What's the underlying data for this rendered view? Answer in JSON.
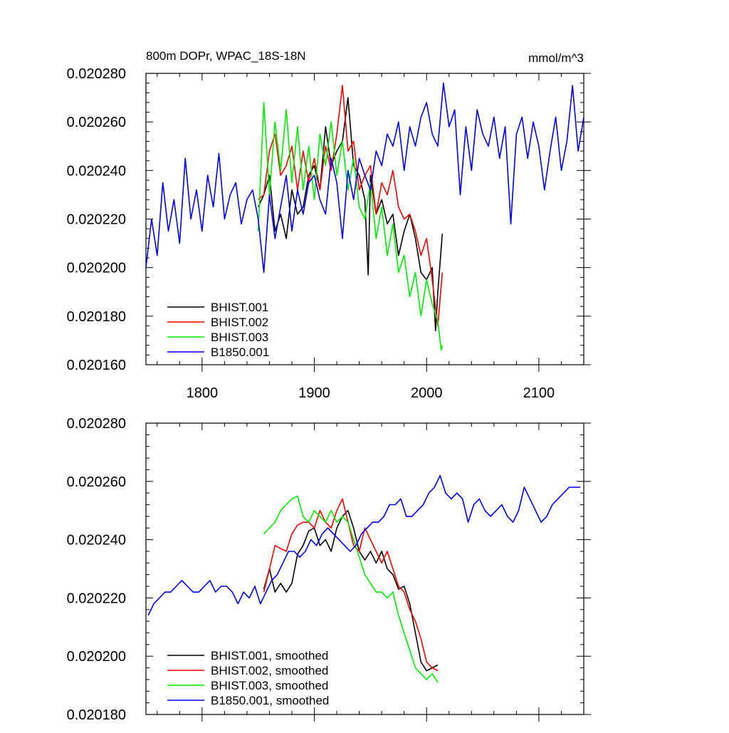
{
  "figure": {
    "title": "800m DOPr, WPAC_18S-18N",
    "units": "mmol/m^3"
  },
  "colors": {
    "BHIST.001": "#000000",
    "BHIST.002": "#ff0000",
    "BHIST.003": "#00ee00",
    "B1850.001": "#0000ff"
  },
  "chart_data": [
    {
      "type": "line",
      "panel": "top",
      "title": "800m DOPr, WPAC_18S-18N",
      "units_label": "mmol/m^3",
      "xlabel": "",
      "ylabel": "",
      "xlim": [
        1750,
        2140
      ],
      "ylim": [
        0.02016,
        0.02028
      ],
      "x_ticks": [
        1800,
        1900,
        2000,
        2100
      ],
      "x_tick_labels": [
        "1800",
        "1900",
        "2000",
        "2100"
      ],
      "y_ticks": [
        0.02016,
        0.02018,
        0.0202,
        0.02022,
        0.02024,
        0.02026,
        0.02028
      ],
      "y_tick_labels": [
        "0.020160",
        "0.020180",
        "0.020200",
        "0.020220",
        "0.020240",
        "0.020260",
        "0.020280"
      ],
      "legend_position": "bottom-left",
      "series": [
        {
          "name": "BHIST.001",
          "x": [
            1850,
            1855,
            1860,
            1865,
            1870,
            1875,
            1880,
            1885,
            1890,
            1895,
            1900,
            1905,
            1910,
            1915,
            1920,
            1925,
            1930,
            1935,
            1940,
            1945,
            1948,
            1950,
            1955,
            1960,
            1965,
            1970,
            1975,
            1980,
            1985,
            1990,
            1995,
            2000,
            2005,
            2008,
            2010,
            2014
          ],
          "values": [
            0.020225,
            0.02023,
            0.020238,
            0.020215,
            0.020222,
            0.020212,
            0.020232,
            0.020222,
            0.020225,
            0.020238,
            0.020242,
            0.020232,
            0.020258,
            0.020242,
            0.020248,
            0.020252,
            0.02027,
            0.020242,
            0.020238,
            0.020228,
            0.020197,
            0.020238,
            0.020222,
            0.020228,
            0.020218,
            0.020222,
            0.020205,
            0.020215,
            0.020222,
            0.020212,
            0.020198,
            0.020195,
            0.0202,
            0.020174,
            0.02019,
            0.020214
          ]
        },
        {
          "name": "BHIST.002",
          "x": [
            1850,
            1855,
            1860,
            1865,
            1870,
            1875,
            1880,
            1885,
            1890,
            1895,
            1900,
            1905,
            1910,
            1915,
            1920,
            1925,
            1930,
            1935,
            1940,
            1945,
            1950,
            1955,
            1960,
            1965,
            1970,
            1975,
            1980,
            1985,
            1990,
            1995,
            2000,
            2005,
            2010,
            2014
          ],
          "values": [
            0.020228,
            0.02023,
            0.020248,
            0.020255,
            0.020238,
            0.020242,
            0.02025,
            0.020232,
            0.020248,
            0.020235,
            0.020245,
            0.020232,
            0.02025,
            0.02024,
            0.020255,
            0.020275,
            0.020248,
            0.020252,
            0.020232,
            0.020238,
            0.020242,
            0.020222,
            0.020235,
            0.02023,
            0.02024,
            0.020225,
            0.02022,
            0.020222,
            0.020215,
            0.020205,
            0.020212,
            0.020195,
            0.020176,
            0.020198
          ]
        },
        {
          "name": "BHIST.003",
          "x": [
            1850,
            1855,
            1860,
            1865,
            1870,
            1875,
            1880,
            1885,
            1890,
            1895,
            1900,
            1905,
            1910,
            1915,
            1920,
            1925,
            1930,
            1935,
            1940,
            1945,
            1950,
            1955,
            1960,
            1965,
            1970,
            1975,
            1980,
            1985,
            1990,
            1995,
            2000,
            2005,
            2010,
            2013,
            2014
          ],
          "values": [
            0.020215,
            0.020268,
            0.02023,
            0.02026,
            0.02024,
            0.020265,
            0.020235,
            0.020258,
            0.020232,
            0.02025,
            0.020228,
            0.020255,
            0.020242,
            0.02026,
            0.020238,
            0.020252,
            0.020232,
            0.020245,
            0.020225,
            0.02022,
            0.020235,
            0.020212,
            0.020225,
            0.020205,
            0.020218,
            0.020198,
            0.020205,
            0.020188,
            0.020198,
            0.02018,
            0.020195,
            0.020185,
            0.020178,
            0.020166,
            0.020168
          ]
        },
        {
          "name": "B1850.001",
          "x": [
            1750,
            1755,
            1760,
            1765,
            1770,
            1775,
            1780,
            1785,
            1790,
            1795,
            1800,
            1805,
            1810,
            1815,
            1820,
            1825,
            1830,
            1835,
            1840,
            1845,
            1850,
            1855,
            1860,
            1865,
            1870,
            1875,
            1880,
            1885,
            1890,
            1895,
            1900,
            1905,
            1910,
            1915,
            1920,
            1925,
            1930,
            1935,
            1940,
            1945,
            1950,
            1955,
            1960,
            1965,
            1970,
            1975,
            1980,
            1985,
            1990,
            1995,
            2000,
            2005,
            2010,
            2015,
            2020,
            2025,
            2030,
            2035,
            2040,
            2045,
            2050,
            2055,
            2060,
            2065,
            2070,
            2075,
            2080,
            2085,
            2090,
            2095,
            2100,
            2105,
            2110,
            2115,
            2120,
            2125,
            2130,
            2135,
            2140
          ],
          "values": [
            0.0202,
            0.02022,
            0.020205,
            0.020235,
            0.020215,
            0.020228,
            0.02021,
            0.020245,
            0.02022,
            0.020232,
            0.020215,
            0.020238,
            0.020225,
            0.020247,
            0.02022,
            0.02023,
            0.020235,
            0.020218,
            0.020228,
            0.020232,
            0.02022,
            0.020198,
            0.02023,
            0.020212,
            0.020225,
            0.020238,
            0.020215,
            0.020232,
            0.020222,
            0.020235,
            0.020238,
            0.020228,
            0.020222,
            0.020245,
            0.020235,
            0.020212,
            0.02024,
            0.020228,
            0.020245,
            0.020238,
            0.020232,
            0.020248,
            0.020242,
            0.020255,
            0.02025,
            0.02026,
            0.02024,
            0.020258,
            0.02025,
            0.020262,
            0.020268,
            0.020255,
            0.02025,
            0.020276,
            0.020258,
            0.020265,
            0.02023,
            0.020258,
            0.02024,
            0.020265,
            0.020255,
            0.02025,
            0.020262,
            0.020245,
            0.020258,
            0.020218,
            0.020255,
            0.020262,
            0.020245,
            0.02026,
            0.02025,
            0.020232,
            0.020248,
            0.020262,
            0.02024,
            0.020252,
            0.020275,
            0.020248,
            0.020262
          ]
        }
      ]
    },
    {
      "type": "line",
      "panel": "bottom",
      "title": "",
      "xlabel": "",
      "ylabel": "",
      "xlim": [
        1750,
        2140
      ],
      "ylim": [
        0.02018,
        0.02028
      ],
      "x_ticks": [
        1800,
        1900,
        2000,
        2100
      ],
      "y_ticks": [
        0.02018,
        0.0202,
        0.02022,
        0.02024,
        0.02026,
        0.02028
      ],
      "y_tick_labels": [
        "0.020180",
        "0.020200",
        "0.020220",
        "0.020240",
        "0.020260",
        "0.020280"
      ],
      "legend_position": "bottom-left",
      "series": [
        {
          "name": "BHIST.001, smoothed",
          "x": [
            1855,
            1860,
            1865,
            1870,
            1875,
            1880,
            1885,
            1890,
            1895,
            1900,
            1905,
            1910,
            1915,
            1920,
            1925,
            1930,
            1935,
            1940,
            1945,
            1950,
            1955,
            1960,
            1965,
            1970,
            1975,
            1980,
            1985,
            1990,
            1995,
            2000,
            2005,
            2010
          ],
          "values": [
            0.020223,
            0.02023,
            0.020222,
            0.020225,
            0.020222,
            0.020225,
            0.020235,
            0.020238,
            0.020243,
            0.020244,
            0.020238,
            0.02024,
            0.020236,
            0.020244,
            0.020248,
            0.02025,
            0.020244,
            0.020236,
            0.020233,
            0.020236,
            0.020232,
            0.020236,
            0.02023,
            0.020228,
            0.020223,
            0.020224,
            0.020218,
            0.020208,
            0.020198,
            0.020195,
            0.020196,
            0.020197
          ]
        },
        {
          "name": "BHIST.002, smoothed",
          "x": [
            1855,
            1860,
            1865,
            1870,
            1875,
            1880,
            1885,
            1890,
            1895,
            1900,
            1905,
            1910,
            1915,
            1920,
            1925,
            1930,
            1935,
            1940,
            1945,
            1950,
            1955,
            1960,
            1965,
            1970,
            1975,
            1980,
            1985,
            1990,
            1995,
            2000,
            2005,
            2010
          ],
          "values": [
            0.020222,
            0.02023,
            0.020238,
            0.020237,
            0.020236,
            0.020242,
            0.020245,
            0.020246,
            0.020246,
            0.020244,
            0.02025,
            0.020246,
            0.020244,
            0.02025,
            0.020254,
            0.020246,
            0.020238,
            0.020236,
            0.020244,
            0.02024,
            0.020236,
            0.020232,
            0.020236,
            0.02023,
            0.020224,
            0.020222,
            0.020216,
            0.020212,
            0.020206,
            0.020198,
            0.020196,
            0.020195
          ]
        },
        {
          "name": "BHIST.003, smoothed",
          "x": [
            1855,
            1860,
            1865,
            1870,
            1875,
            1880,
            1885,
            1890,
            1895,
            1900,
            1905,
            1910,
            1915,
            1920,
            1925,
            1930,
            1935,
            1940,
            1945,
            1950,
            1955,
            1960,
            1965,
            1970,
            1975,
            1980,
            1985,
            1990,
            1995,
            2000,
            2005,
            2010
          ],
          "values": [
            0.020242,
            0.020244,
            0.020246,
            0.02025,
            0.020252,
            0.020254,
            0.020255,
            0.020248,
            0.020246,
            0.02025,
            0.020248,
            0.020246,
            0.02025,
            0.020246,
            0.020248,
            0.020246,
            0.02024,
            0.020234,
            0.020228,
            0.020225,
            0.020222,
            0.020222,
            0.02022,
            0.020222,
            0.020214,
            0.020208,
            0.020202,
            0.020196,
            0.020194,
            0.020192,
            0.020194,
            0.020191
          ]
        },
        {
          "name": "B1850.001, smoothed",
          "x": [
            1752,
            1757,
            1762,
            1767,
            1772,
            1777,
            1782,
            1787,
            1792,
            1797,
            1802,
            1807,
            1812,
            1817,
            1822,
            1827,
            1832,
            1837,
            1842,
            1847,
            1852,
            1857,
            1862,
            1867,
            1872,
            1877,
            1882,
            1887,
            1892,
            1897,
            1902,
            1907,
            1912,
            1917,
            1922,
            1927,
            1932,
            1937,
            1942,
            1947,
            1952,
            1957,
            1962,
            1967,
            1972,
            1977,
            1982,
            1987,
            1992,
            1997,
            2002,
            2007,
            2012,
            2017,
            2022,
            2027,
            2032,
            2037,
            2042,
            2047,
            2052,
            2057,
            2062,
            2067,
            2072,
            2077,
            2082,
            2087,
            2092,
            2097,
            2102,
            2107,
            2112,
            2117,
            2122,
            2127,
            2132,
            2137
          ],
          "values": [
            0.020214,
            0.020218,
            0.02022,
            0.020222,
            0.020222,
            0.020224,
            0.020226,
            0.020224,
            0.020222,
            0.020222,
            0.020224,
            0.020226,
            0.020222,
            0.020224,
            0.020224,
            0.020222,
            0.020218,
            0.020222,
            0.02022,
            0.020224,
            0.020218,
            0.020222,
            0.020226,
            0.020228,
            0.020232,
            0.020236,
            0.020236,
            0.020234,
            0.020236,
            0.02024,
            0.020238,
            0.020242,
            0.020244,
            0.020242,
            0.02024,
            0.020238,
            0.020236,
            0.020238,
            0.020242,
            0.020244,
            0.020246,
            0.020246,
            0.020248,
            0.020252,
            0.020252,
            0.020254,
            0.020248,
            0.020248,
            0.02025,
            0.020252,
            0.020256,
            0.020258,
            0.020262,
            0.020256,
            0.020254,
            0.020256,
            0.020254,
            0.020246,
            0.020252,
            0.020254,
            0.02025,
            0.020248,
            0.02025,
            0.020252,
            0.020248,
            0.020246,
            0.02025,
            0.020258,
            0.020254,
            0.02025,
            0.020246,
            0.020248,
            0.020252,
            0.020254,
            0.020256,
            0.020258,
            0.020258,
            0.020258
          ]
        }
      ]
    }
  ]
}
